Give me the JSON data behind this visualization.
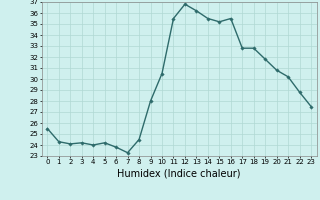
{
  "x": [
    0,
    1,
    2,
    3,
    4,
    5,
    6,
    7,
    8,
    9,
    10,
    11,
    12,
    13,
    14,
    15,
    16,
    17,
    18,
    19,
    20,
    21,
    22,
    23
  ],
  "y": [
    25.5,
    24.3,
    24.1,
    24.2,
    24.0,
    24.2,
    23.8,
    23.3,
    24.5,
    28.0,
    30.5,
    35.5,
    36.8,
    36.2,
    35.5,
    35.2,
    35.5,
    32.8,
    32.8,
    31.8,
    30.8,
    30.2,
    28.8,
    27.5
  ],
  "line_color": "#2e6b6b",
  "marker": "D",
  "marker_size": 1.8,
  "bg_color": "#cff0ee",
  "grid_color": "#b0d8d4",
  "xlabel": "Humidex (Indice chaleur)",
  "ylim": [
    23,
    37
  ],
  "xlim": [
    -0.5,
    23.5
  ],
  "yticks": [
    23,
    24,
    25,
    26,
    27,
    28,
    29,
    30,
    31,
    32,
    33,
    34,
    35,
    36,
    37
  ],
  "xticks": [
    0,
    1,
    2,
    3,
    4,
    5,
    6,
    7,
    8,
    9,
    10,
    11,
    12,
    13,
    14,
    15,
    16,
    17,
    18,
    19,
    20,
    21,
    22,
    23
  ],
  "xtick_labels": [
    "0",
    "1",
    "2",
    "3",
    "4",
    "5",
    "6",
    "7",
    "8",
    "9",
    "10",
    "11",
    "12",
    "13",
    "14",
    "15",
    "16",
    "17",
    "18",
    "19",
    "20",
    "21",
    "22",
    "23"
  ],
  "tick_fontsize": 5.0,
  "xlabel_fontsize": 7.0,
  "linewidth": 1.0
}
